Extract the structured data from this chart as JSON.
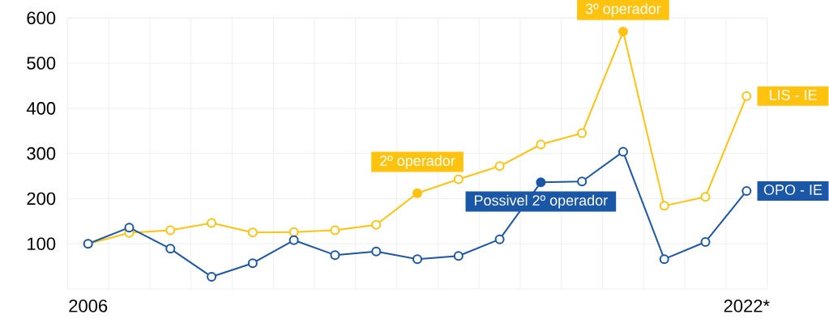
{
  "chart_data": {
    "type": "line",
    "categories": [
      "2006",
      null,
      null,
      null,
      null,
      null,
      null,
      null,
      null,
      null,
      null,
      null,
      null,
      null,
      null,
      null,
      "2022*"
    ],
    "series": [
      {
        "name": "LIS - IE",
        "color": "#ffc30f",
        "values": [
          100,
          124,
          130,
          146,
          125,
          126,
          130,
          142,
          212,
          243,
          272,
          320,
          345,
          570,
          184,
          204,
          427
        ]
      },
      {
        "name": "OPO - IE",
        "color": "#1b57a7",
        "values": [
          100,
          136,
          89,
          27,
          57,
          108,
          75,
          83,
          66,
          73,
          110,
          236,
          238,
          304,
          66,
          104,
          217
        ]
      }
    ],
    "ylim": [
      0,
      600
    ],
    "yticks": [
      100,
      200,
      300,
      400,
      500,
      600
    ],
    "grid": true,
    "marker": "circle",
    "line_style": "solid",
    "annotations": [
      {
        "text": "2º operador",
        "y": 212
      },
      {
        "text": "Possivel 2º operador",
        "y": 236
      },
      {
        "text": "3º operador",
        "y": 570
      }
    ]
  }
}
